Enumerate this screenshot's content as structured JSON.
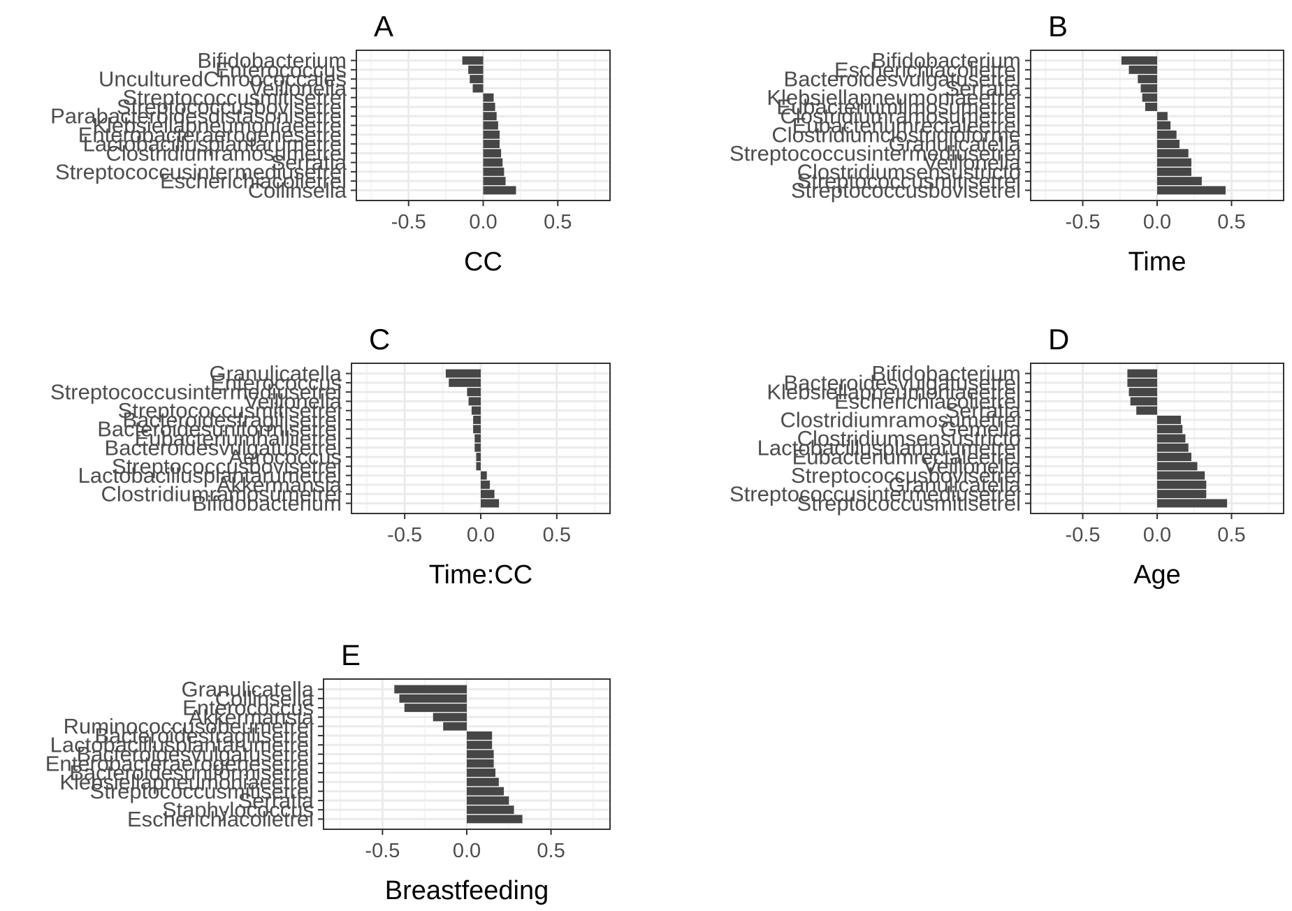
{
  "chart_data": [
    {
      "type": "bar",
      "orientation": "horizontal",
      "panel_label": "A",
      "xlabel": "CC",
      "xlim": [
        -0.85,
        0.85
      ],
      "xticks": [
        "-0.5",
        "0.0",
        "0.5"
      ],
      "grid": true,
      "categories": [
        "Bifidobacterium",
        "Enterococcus",
        "UnculturedChroococcales",
        "Veillonella",
        "Streptococcusmitisetrel",
        "Streptococcusbovisetrel",
        "Parabacteroidesdistasonisetrel",
        "Klebsiellapneumoniaeetrel",
        "Enterobacteraerogenesetrel",
        "Lactobacillusplantarumetrel",
        "Clostridiumramosumetrel",
        "Serratia",
        "Streptococcusintermediusetrel",
        "Escherichiacolietrel",
        "Collinsella"
      ],
      "values": [
        -0.14,
        -0.1,
        -0.09,
        -0.07,
        0.07,
        0.08,
        0.09,
        0.1,
        0.11,
        0.11,
        0.12,
        0.13,
        0.14,
        0.15,
        0.22
      ]
    },
    {
      "type": "bar",
      "orientation": "horizontal",
      "panel_label": "B",
      "xlabel": "Time",
      "xlim": [
        -0.85,
        0.85
      ],
      "xticks": [
        "-0.5",
        "0.0",
        "0.5"
      ],
      "grid": true,
      "categories": [
        "Bifidobacterium",
        "Escherichiacolietrel",
        "Bacteroidesvulgatusetrel",
        "Serratia",
        "Klebsiellapneumoniaeetrel",
        "Eubacteriumlimosumetrel",
        "Clostridiumramosumetrel",
        "Eubacteriumrectaleetrel",
        "Clostridiumclostridioforme",
        "Granulicatella",
        "Streptococcusintermediusetrel",
        "Veillonella",
        "Clostridiumsensustricto",
        "Streptococcusmitisetrel",
        "Streptococcusbovisetrel"
      ],
      "values": [
        -0.24,
        -0.19,
        -0.13,
        -0.11,
        -0.1,
        -0.08,
        0.07,
        0.09,
        0.13,
        0.15,
        0.21,
        0.23,
        0.23,
        0.3,
        0.46
      ]
    },
    {
      "type": "bar",
      "orientation": "horizontal",
      "panel_label": "C",
      "xlabel": "Time:CC",
      "xlim": [
        -0.85,
        0.85
      ],
      "xticks": [
        "-0.5",
        "0.0",
        "0.5"
      ],
      "grid": true,
      "categories": [
        "Granulicatella",
        "Enterococcus",
        "Streptococcusintermediusetrel",
        "Veillonella",
        "Streptococcusmitisetrel",
        "Bacteroidesfragilisetrel",
        "Bacteroidesuniformisetrel",
        "Eubacteriumhalliietrel",
        "Bacteroidesvulgatusetrel",
        "Aerococcus",
        "Streptococcusbovisetrel",
        "Lactobacillusplantarumetrel",
        "Akkermansia",
        "Clostridiumramosumetrel",
        "Bifidobacterium"
      ],
      "values": [
        -0.23,
        -0.21,
        -0.09,
        -0.08,
        -0.06,
        -0.05,
        -0.05,
        -0.04,
        -0.04,
        -0.03,
        -0.03,
        0.04,
        0.06,
        0.09,
        0.12
      ]
    },
    {
      "type": "bar",
      "orientation": "horizontal",
      "panel_label": "D",
      "xlabel": "Age",
      "xlim": [
        -0.85,
        0.85
      ],
      "xticks": [
        "-0.5",
        "0.0",
        "0.5"
      ],
      "grid": true,
      "categories": [
        "Bifidobacterium",
        "Bacteroidesvulgatusetrel",
        "Klebsiellapneumoniaeetrel",
        "Escherichiacolietrel",
        "Serratia",
        "Clostridiumramosumetrel",
        "Gemella",
        "Clostridiumsensustricto",
        "Lactobacillusplantarumetrel",
        "Eubacteriumrectaleetrel",
        "Veillonella",
        "Streptococcusbovisetrel",
        "Granulicatella",
        "Streptococcusintermediusetrel",
        "Streptococcusmitisetrel"
      ],
      "values": [
        -0.2,
        -0.2,
        -0.19,
        -0.18,
        -0.14,
        0.16,
        0.17,
        0.19,
        0.21,
        0.23,
        0.27,
        0.32,
        0.33,
        0.33,
        0.47
      ]
    },
    {
      "type": "bar",
      "orientation": "horizontal",
      "panel_label": "E",
      "xlabel": "Breastfeeding",
      "xlim": [
        -0.85,
        0.85
      ],
      "xticks": [
        "-0.5",
        "0.0",
        "0.5"
      ],
      "grid": true,
      "categories": [
        "Granulicatella",
        "Collinsella",
        "Enterococcus",
        "Akkermansia",
        "Ruminococcusobeumetrel",
        "Bacteroidesfragilisetrel",
        "Lactobacillusplantarumetrel",
        "Bacteroidesvulgatusetrel",
        "Enterobacteraerogenesetrel",
        "Bacteroidesuniformisetrel",
        "Klebsiellapneumoniaeetrel",
        "Streptococcusmitisetrel",
        "Serratia",
        "Staphylococcus",
        "Escherichiacolietrel"
      ],
      "values": [
        -0.43,
        -0.4,
        -0.37,
        -0.2,
        -0.14,
        0.15,
        0.15,
        0.16,
        0.16,
        0.17,
        0.19,
        0.22,
        0.25,
        0.28,
        0.33
      ]
    }
  ],
  "colors": {
    "bar": "#464646",
    "panel_border": "#333333",
    "grid_major": "#ebebeb",
    "grid_minor": "#f4f4f4",
    "tick_text": "#4d4d4d",
    "title_text": "#000000"
  }
}
